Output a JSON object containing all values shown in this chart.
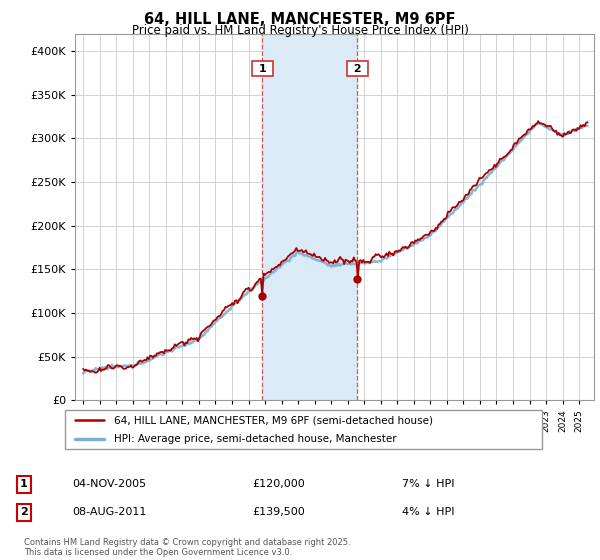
{
  "title": "64, HILL LANE, MANCHESTER, M9 6PF",
  "subtitle": "Price paid vs. HM Land Registry's House Price Index (HPI)",
  "legend_line1": "64, HILL LANE, MANCHESTER, M9 6PF (semi-detached house)",
  "legend_line2": "HPI: Average price, semi-detached house, Manchester",
  "transaction1_date": "04-NOV-2005",
  "transaction1_price": "£120,000",
  "transaction1_hpi": "7% ↓ HPI",
  "transaction2_date": "08-AUG-2011",
  "transaction2_price": "£139,500",
  "transaction2_hpi": "4% ↓ HPI",
  "footer": "Contains HM Land Registry data © Crown copyright and database right 2025.\nThis data is licensed under the Open Government Licence v3.0.",
  "hpi_color": "#7ab0d4",
  "price_color": "#aa0000",
  "highlight_color": "#daeaf7",
  "marker1_x": 2005.83,
  "marker2_x": 2011.58,
  "marker1_y": 120000,
  "marker2_y": 139500,
  "ylim": [
    0,
    420000
  ],
  "xlim": [
    1994.5,
    2025.9
  ]
}
